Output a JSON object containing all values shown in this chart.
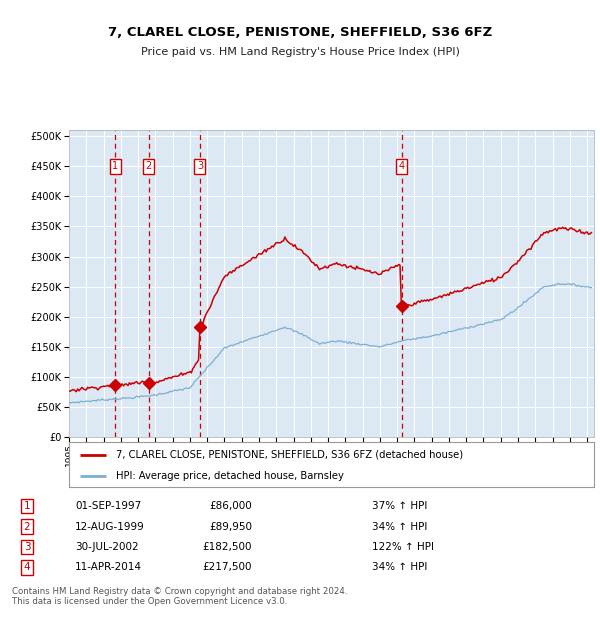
{
  "title": "7, CLAREL CLOSE, PENISTONE, SHEFFIELD, S36 6FZ",
  "subtitle": "Price paid vs. HM Land Registry's House Price Index (HPI)",
  "property_label": "7, CLAREL CLOSE, PENISTONE, SHEFFIELD, S36 6FZ (detached house)",
  "hpi_label": "HPI: Average price, detached house, Barnsley",
  "sale_events": [
    {
      "num": 1,
      "date": "01-SEP-1997",
      "price": 86000,
      "pct": "37%",
      "dir": "↑"
    },
    {
      "num": 2,
      "date": "12-AUG-1999",
      "price": 89950,
      "pct": "34%",
      "dir": "↑"
    },
    {
      "num": 3,
      "date": "30-JUL-2002",
      "price": 182500,
      "pct": "122%",
      "dir": "↑"
    },
    {
      "num": 4,
      "date": "11-APR-2014",
      "price": 217500,
      "pct": "34%",
      "dir": "↑"
    }
  ],
  "sale_years": [
    1997.67,
    1999.61,
    2002.58,
    2014.28
  ],
  "sale_prices": [
    86000,
    89950,
    182500,
    217500
  ],
  "bg_color": "#dce9f5",
  "grid_color": "#ffffff",
  "red_color": "#cc0000",
  "blue_color": "#7aafd4",
  "footer": "Contains HM Land Registry data © Crown copyright and database right 2024.\nThis data is licensed under the Open Government Licence v3.0.",
  "ylim": [
    0,
    500000
  ],
  "yticks": [
    0,
    50000,
    100000,
    150000,
    200000,
    250000,
    300000,
    350000,
    400000,
    450000,
    500000
  ],
  "xlim_start": 1995,
  "xlim_end": 2025.4
}
